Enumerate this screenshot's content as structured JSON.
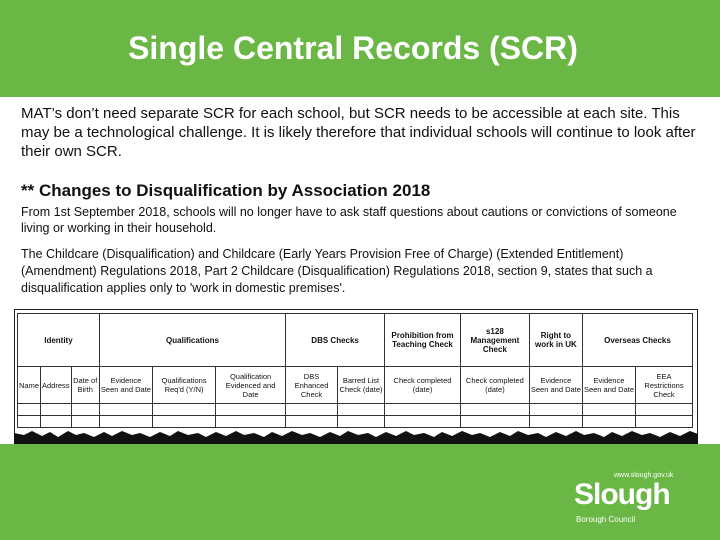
{
  "title": "Single Central Records (SCR)",
  "intro": "MAT’s don’t need separate SCR for each school, but SCR needs to be accessible at each site. This may be a technological challenge. It is likely therefore that individual schools will continue to look after their own SCR.",
  "subheading": "** Changes to Disqualification by Association 2018",
  "para1": "From 1st September 2018, schools will no longer have to ask staff questions about cautions or convictions of someone living or working in their household.",
  "para2": "The Childcare (Disqualification) and Childcare (Early Years Provision Free of Charge) (Extended Entitlement) (Amendment) Regulations 2018, Part 2 Childcare (Disqualification) Regulations 2018, section 9, states that such a disqualification applies only to 'work in domestic premises'.",
  "table": {
    "groups": [
      "Identity",
      "Qualifications",
      "DBS Checks",
      "Prohibition from Teaching Check",
      "s128 Management Check",
      "Right to work in UK",
      "Overseas Checks"
    ],
    "columns": [
      "Name",
      "Address",
      "Date of Birth",
      "Evidence Seen and Date",
      "Qualifications Req'd (Y/N)",
      "Qualification Evidenced and Date",
      "DBS Enhanced Check",
      "Barred List Check (date)",
      "Check completed (date)",
      "Check completed (date)",
      "Evidence Seen and Date",
      "Evidence Seen and Date",
      "EEA Restrictions Check"
    ]
  },
  "logo": {
    "url": "www.slough.gov.uk",
    "name": "Slough",
    "council": "Borough Council"
  },
  "colors": {
    "brand_green": "#6ab746"
  }
}
